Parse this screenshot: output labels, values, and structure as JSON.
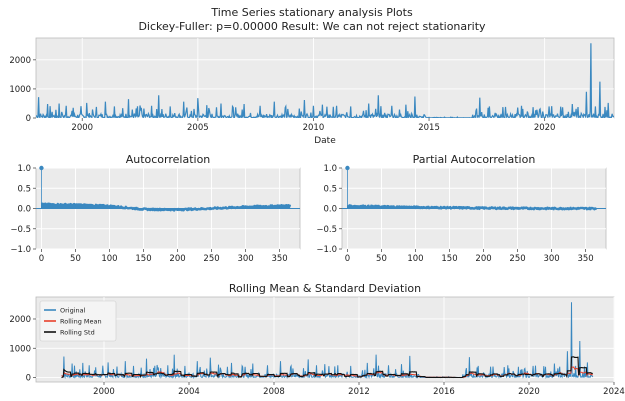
{
  "figure": {
    "title_line1": "Time Series stationary analysis Plots",
    "title_line2": "Dickey-Fuller: p=0.00000 Result: We can not reject stationarity"
  },
  "chart_data": [
    {
      "id": "series",
      "type": "line",
      "title": "",
      "xlabel": "Date",
      "ylabel": "",
      "xlim": [
        1998.0,
        2023.0
      ],
      "ylim": [
        0,
        2750
      ],
      "xticks": [
        2000,
        2005,
        2010,
        2015,
        2020
      ],
      "yticks": [
        0,
        1000,
        2000
      ],
      "grid": true,
      "color": "#3a88c0",
      "baseline": [
        [
          1998.0,
          120
        ],
        [
          1999.0,
          110
        ],
        [
          2000.0,
          115
        ],
        [
          2001.0,
          110
        ],
        [
          2002.0,
          115
        ],
        [
          2003.0,
          120
        ],
        [
          2004.0,
          110
        ],
        [
          2005.0,
          115
        ],
        [
          2006.0,
          110
        ],
        [
          2007.0,
          105
        ],
        [
          2008.0,
          110
        ],
        [
          2009.0,
          110
        ],
        [
          2010.0,
          115
        ],
        [
          2011.0,
          110
        ],
        [
          2012.0,
          105
        ],
        [
          2013.0,
          110
        ],
        [
          2014.0,
          115
        ],
        [
          2014.5,
          60
        ],
        [
          2015.0,
          20
        ],
        [
          2016.0,
          10
        ],
        [
          2016.8,
          10
        ],
        [
          2017.0,
          90
        ],
        [
          2018.0,
          110
        ],
        [
          2019.0,
          110
        ],
        [
          2020.0,
          115
        ],
        [
          2021.0,
          120
        ],
        [
          2022.0,
          130
        ],
        [
          2023.0,
          120
        ]
      ],
      "spikes": [
        [
          1998.1,
          720
        ],
        [
          1998.5,
          480
        ],
        [
          1999.0,
          500
        ],
        [
          1999.3,
          420
        ],
        [
          1999.6,
          350
        ],
        [
          2000.2,
          520
        ],
        [
          2000.6,
          380
        ],
        [
          2001.0,
          560
        ],
        [
          2001.4,
          400
        ],
        [
          2002.0,
          650
        ],
        [
          2002.5,
          430
        ],
        [
          2003.0,
          420
        ],
        [
          2003.3,
          780
        ],
        [
          2003.8,
          400
        ],
        [
          2004.4,
          560
        ],
        [
          2005.0,
          680
        ],
        [
          2005.4,
          440
        ],
        [
          2006.0,
          500
        ],
        [
          2006.5,
          400
        ],
        [
          2007.0,
          480
        ],
        [
          2007.7,
          420
        ],
        [
          2008.3,
          560
        ],
        [
          2008.8,
          400
        ],
        [
          2009.6,
          620
        ],
        [
          2010.0,
          420
        ],
        [
          2010.4,
          460
        ],
        [
          2011.0,
          420
        ],
        [
          2011.6,
          400
        ],
        [
          2012.4,
          500
        ],
        [
          2012.8,
          780
        ],
        [
          2013.4,
          420
        ],
        [
          2014.0,
          460
        ],
        [
          2014.4,
          740
        ],
        [
          2017.2,
          700
        ],
        [
          2017.6,
          400
        ],
        [
          2018.3,
          380
        ],
        [
          2019.0,
          420
        ],
        [
          2019.5,
          370
        ],
        [
          2020.2,
          400
        ],
        [
          2020.7,
          390
        ],
        [
          2021.2,
          480
        ],
        [
          2021.8,
          900
        ],
        [
          2022.0,
          2570
        ],
        [
          2022.2,
          400
        ],
        [
          2022.4,
          1250
        ],
        [
          2022.6,
          380
        ],
        [
          2022.75,
          520
        ]
      ]
    },
    {
      "id": "acf",
      "type": "scatter",
      "title": "Autocorrelation",
      "xlabel": "",
      "ylabel": "",
      "xlim": [
        -8,
        380
      ],
      "ylim": [
        -1.0,
        1.0
      ],
      "xticks": [
        0,
        50,
        100,
        150,
        200,
        250,
        300,
        350
      ],
      "xtick_labels": [
        "0",
        "50",
        "100",
        "150",
        "200",
        "250",
        "300",
        "350"
      ],
      "yticks": [
        -1.0,
        -0.5,
        0.0,
        0.5,
        1.0
      ],
      "ytick_labels": [
        "−1.0",
        "−0.5",
        "0.0",
        "0.5",
        "1.0"
      ],
      "grid": true,
      "color": "#3a88c0",
      "lag0": 1.0,
      "curve": [
        [
          1,
          0.1
        ],
        [
          50,
          0.09
        ],
        [
          100,
          0.06
        ],
        [
          150,
          -0.02
        ],
        [
          200,
          -0.03
        ],
        [
          250,
          0.0
        ],
        [
          300,
          0.04
        ],
        [
          365,
          0.07
        ]
      ]
    },
    {
      "id": "pacf",
      "type": "scatter",
      "title": "Partial Autocorrelation",
      "xlabel": "",
      "ylabel": "",
      "xlim": [
        -8,
        380
      ],
      "ylim": [
        -1.0,
        1.0
      ],
      "xticks": [
        0,
        50,
        100,
        150,
        200,
        250,
        300,
        350
      ],
      "xtick_labels": [
        "0",
        "50",
        "100",
        "150",
        "200",
        "250",
        "300",
        "350"
      ],
      "yticks": [
        -1.0,
        -0.5,
        0.0,
        0.5,
        1.0
      ],
      "ytick_labels": [
        "−1.0",
        "−0.5",
        "0.0",
        "0.5",
        "1.0"
      ],
      "grid": true,
      "color": "#3a88c0",
      "lag0": 1.0,
      "curve": [
        [
          1,
          0.06
        ],
        [
          100,
          0.03
        ],
        [
          200,
          0.01
        ],
        [
          300,
          0.0
        ],
        [
          365,
          0.0
        ]
      ]
    },
    {
      "id": "rolling",
      "type": "line",
      "title": "Rolling Mean & Standard Deviation",
      "xlabel": "",
      "ylabel": "",
      "xlim": [
        1996.8,
        2024.0
      ],
      "ylim": [
        -150,
        2750
      ],
      "xticks": [
        2000,
        2004,
        2008,
        2012,
        2016,
        2020,
        2024
      ],
      "yticks": [
        0,
        1000,
        2000
      ],
      "grid": true,
      "legend": "top-left",
      "series": [
        {
          "name": "Original",
          "color": "#3a88c0"
        },
        {
          "name": "Rolling Mean",
          "color": "#e8402a"
        },
        {
          "name": "Rolling Std",
          "color": "#111111"
        }
      ]
    }
  ]
}
